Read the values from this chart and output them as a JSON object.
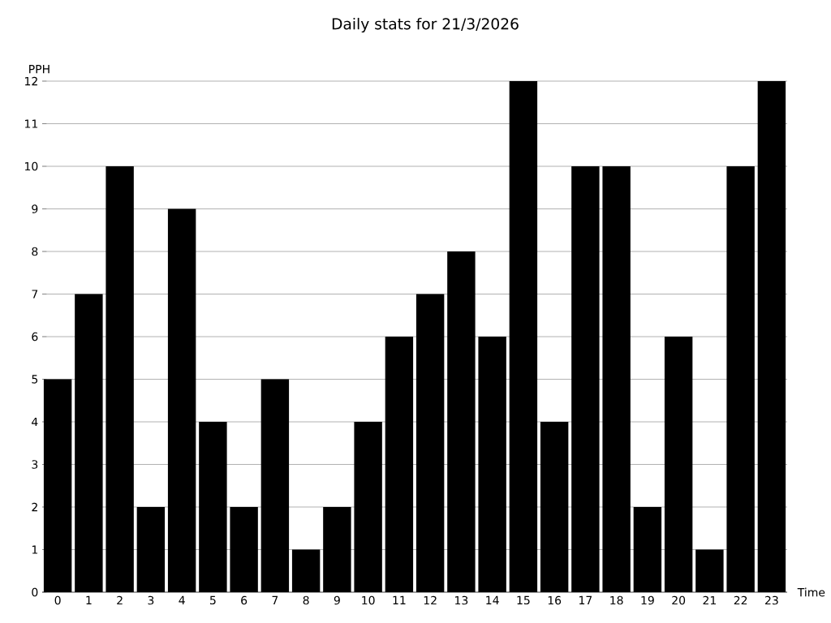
{
  "chart_data": {
    "type": "bar",
    "title": "Daily stats for 21/3/2026",
    "xlabel": "Time",
    "ylabel": "PPH",
    "categories": [
      "0",
      "1",
      "2",
      "3",
      "4",
      "5",
      "6",
      "7",
      "8",
      "9",
      "10",
      "11",
      "12",
      "13",
      "14",
      "15",
      "16",
      "17",
      "18",
      "19",
      "20",
      "21",
      "22",
      "23"
    ],
    "values": [
      5,
      7,
      10,
      2,
      9,
      4,
      2,
      5,
      1,
      2,
      4,
      6,
      7,
      8,
      6,
      12,
      4,
      10,
      10,
      2,
      6,
      1,
      10,
      12
    ],
    "color": "#000000",
    "ylim": [
      0,
      12
    ],
    "yticks": [
      0,
      1,
      2,
      3,
      4,
      5,
      6,
      7,
      8,
      9,
      10,
      11,
      12
    ],
    "grid": "y"
  }
}
